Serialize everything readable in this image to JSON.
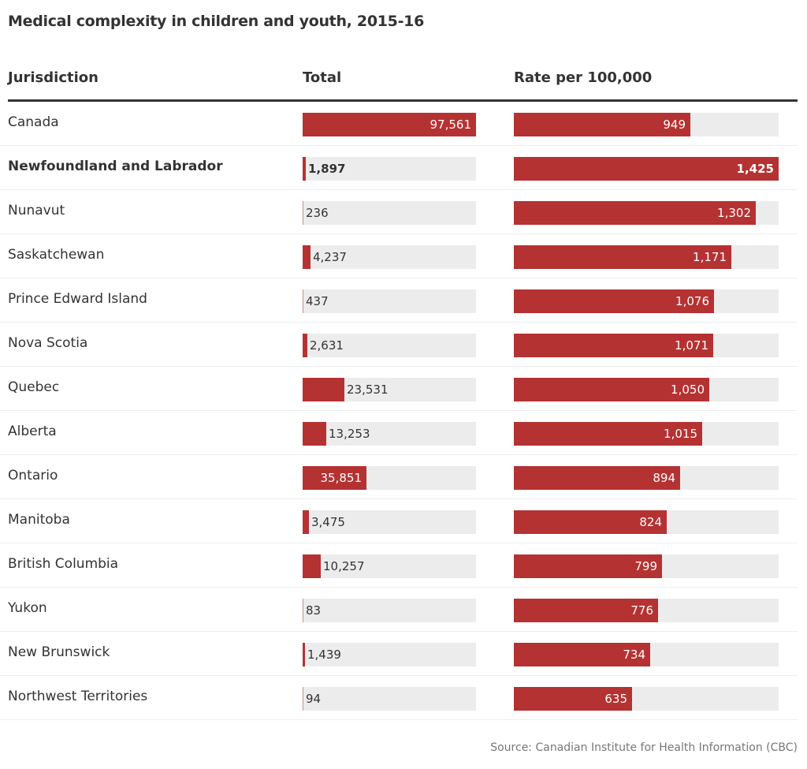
{
  "chart_data": {
    "type": "table",
    "title": "Medical complexity in children and youth, 2015-16",
    "columns": [
      "Jurisdiction",
      "Total",
      "Rate per 100,000"
    ],
    "max_total": 97561,
    "max_rate": 1425,
    "rows": [
      {
        "jurisdiction": "Canada",
        "total": 97561,
        "total_label": "97,561",
        "rate": 949,
        "rate_label": "949",
        "highlight": false
      },
      {
        "jurisdiction": "Newfoundland and Labrador",
        "total": 1897,
        "total_label": "1,897",
        "rate": 1425,
        "rate_label": "1,425",
        "highlight": true
      },
      {
        "jurisdiction": "Nunavut",
        "total": 236,
        "total_label": "236",
        "rate": 1302,
        "rate_label": "1,302",
        "highlight": false
      },
      {
        "jurisdiction": "Saskatchewan",
        "total": 4237,
        "total_label": "4,237",
        "rate": 1171,
        "rate_label": "1,171",
        "highlight": false
      },
      {
        "jurisdiction": "Prince Edward Island",
        "total": 437,
        "total_label": "437",
        "rate": 1076,
        "rate_label": "1,076",
        "highlight": false
      },
      {
        "jurisdiction": "Nova Scotia",
        "total": 2631,
        "total_label": "2,631",
        "rate": 1071,
        "rate_label": "1,071",
        "highlight": false
      },
      {
        "jurisdiction": "Quebec",
        "total": 23531,
        "total_label": "23,531",
        "rate": 1050,
        "rate_label": "1,050",
        "highlight": false
      },
      {
        "jurisdiction": "Alberta",
        "total": 13253,
        "total_label": "13,253",
        "rate": 1015,
        "rate_label": "1,015",
        "highlight": false
      },
      {
        "jurisdiction": "Ontario",
        "total": 35851,
        "total_label": "35,851",
        "rate": 894,
        "rate_label": "894",
        "highlight": false
      },
      {
        "jurisdiction": "Manitoba",
        "total": 3475,
        "total_label": "3,475",
        "rate": 824,
        "rate_label": "824",
        "highlight": false
      },
      {
        "jurisdiction": "British Columbia",
        "total": 10257,
        "total_label": "10,257",
        "rate": 799,
        "rate_label": "799",
        "highlight": false
      },
      {
        "jurisdiction": "Yukon",
        "total": 83,
        "total_label": "83",
        "rate": 776,
        "rate_label": "776",
        "highlight": false
      },
      {
        "jurisdiction": "New Brunswick",
        "total": 1439,
        "total_label": "1,439",
        "rate": 734,
        "rate_label": "734",
        "highlight": false
      },
      {
        "jurisdiction": "Northwest Territories",
        "total": 94,
        "total_label": "94",
        "rate": 635,
        "rate_label": "635",
        "highlight": false
      }
    ],
    "bar_color": "#b53232",
    "track_color": "#ececec"
  },
  "title": "Medical complexity in children and youth, 2015-16",
  "headers": {
    "jurisdiction": "Jurisdiction",
    "total": "Total",
    "rate": "Rate per 100,000"
  },
  "source": "Source: Canadian Institute for Health Information (CBC)"
}
